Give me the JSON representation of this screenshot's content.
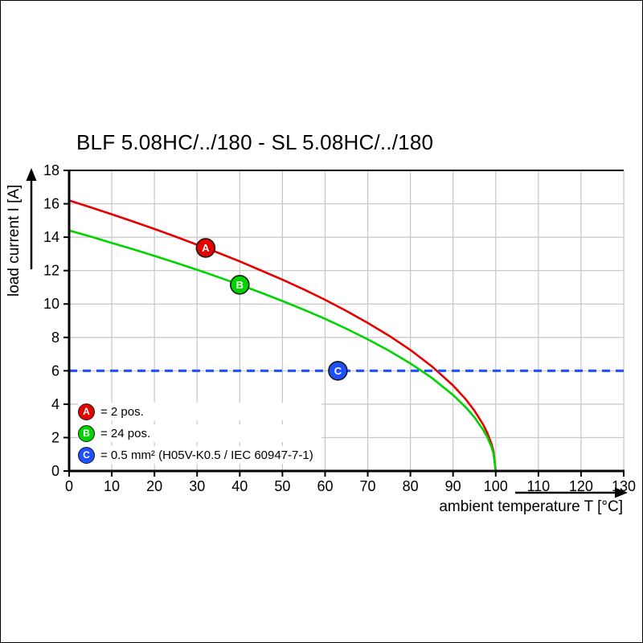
{
  "chart_data": {
    "type": "line",
    "title": "BLF 5.08HC/../180 - SL 5.08HC/../180",
    "xlabel": "ambient temperature T [°C]",
    "ylabel": "load current I [A]",
    "xlim": [
      0,
      130
    ],
    "ylim": [
      0,
      18
    ],
    "xticks": [
      0,
      10,
      20,
      30,
      40,
      50,
      60,
      70,
      80,
      90,
      100,
      110,
      120,
      130
    ],
    "yticks": [
      0,
      2,
      4,
      6,
      8,
      10,
      12,
      14,
      16,
      18
    ],
    "grid": true,
    "legend_position": "inside-bottom-left",
    "colors": {
      "red": "#e60000",
      "green": "#00d400",
      "blue": "#1e50ff",
      "grid": "#c6c6c6",
      "axis": "#000000",
      "background": "#ffffff"
    },
    "series": [
      {
        "name": "A",
        "label": "2 pos.",
        "color": "#e60000",
        "x": [
          0,
          5,
          10,
          15,
          20,
          25,
          30,
          35,
          40,
          45,
          50,
          55,
          60,
          65,
          70,
          75,
          80,
          85,
          90,
          93,
          95,
          97,
          98,
          99,
          99.5,
          100
        ],
        "y": [
          16.2,
          15.79,
          15.37,
          14.94,
          14.49,
          14.03,
          13.55,
          13.06,
          12.55,
          12.01,
          11.46,
          10.87,
          10.25,
          9.58,
          8.87,
          8.1,
          7.25,
          6.27,
          5.12,
          4.29,
          3.62,
          2.81,
          2.29,
          1.62,
          1.15,
          0
        ],
        "marker": {
          "x": 32,
          "y": 13.36
        }
      },
      {
        "name": "B",
        "label": "24 pos.",
        "color": "#00d400",
        "x": [
          0,
          5,
          10,
          15,
          20,
          25,
          30,
          35,
          40,
          45,
          50,
          55,
          60,
          65,
          70,
          75,
          80,
          85,
          90,
          93,
          95,
          97,
          98,
          99,
          99.5,
          100
        ],
        "y": [
          14.4,
          14.04,
          13.66,
          13.28,
          12.88,
          12.47,
          12.05,
          11.61,
          11.15,
          10.68,
          10.18,
          9.66,
          9.11,
          8.52,
          7.89,
          7.2,
          6.44,
          5.58,
          4.55,
          3.81,
          3.22,
          2.49,
          2.04,
          1.44,
          1.02,
          0
        ],
        "marker": {
          "x": 40,
          "y": 11.15
        }
      },
      {
        "name": "C",
        "label": "0.5 mm² (H05V-K0.5 / IEC 60947-7-1)",
        "color": "#1e50ff",
        "style": "dashed",
        "dash": "10 7",
        "width": 3.2,
        "x": [
          0,
          130
        ],
        "y": [
          6,
          6
        ],
        "marker": {
          "x": 63,
          "y": 6
        }
      }
    ],
    "legend": [
      {
        "badge": "A",
        "color": "#e60000",
        "label": "= 2 pos."
      },
      {
        "badge": "B",
        "color": "#00d400",
        "label": "= 24 pos."
      },
      {
        "badge": "C",
        "color": "#1e50ff",
        "label": "= 0.5 mm² (H05V-K0.5 / IEC 60947-7-1)"
      }
    ]
  }
}
